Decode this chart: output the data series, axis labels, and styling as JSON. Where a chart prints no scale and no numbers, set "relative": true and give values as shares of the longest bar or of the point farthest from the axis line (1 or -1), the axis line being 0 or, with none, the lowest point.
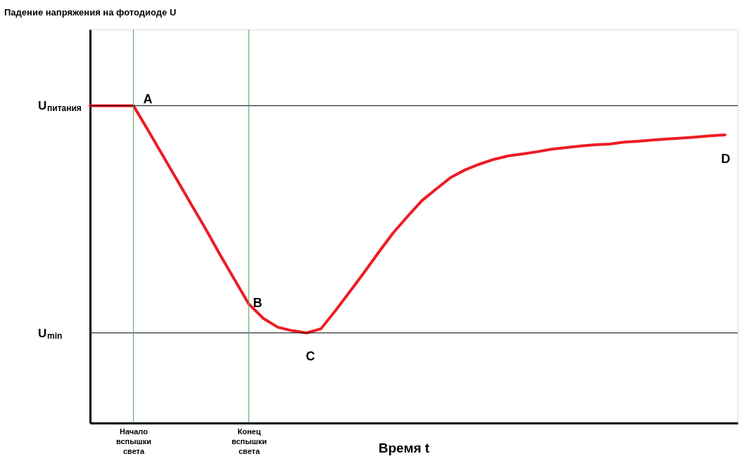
{
  "chart_data": {
    "type": "line",
    "relative": true,
    "xlabel": "Время t",
    "legend": false,
    "marker": "none",
    "line_style": "solid",
    "categories": [
      null,
      null,
      null,
      "Начало вспышки света",
      null,
      null,
      null,
      null,
      null,
      null,
      null,
      "Конец вспышки света",
      null,
      null,
      null,
      null,
      null,
      null,
      null,
      null,
      null,
      null,
      null,
      null,
      null,
      null,
      null,
      null,
      null,
      null,
      null,
      null,
      null,
      null,
      null,
      null,
      null,
      null,
      null,
      null,
      null,
      null,
      null,
      null,
      null
    ],
    "series": [
      {
        "color": "#ed1c24",
        "values": [
          1,
          1,
          1,
          1,
          0.924,
          0.846,
          0.768,
          0.69,
          0.612,
          0.531,
          0.453,
          0.375,
          0.33,
          0.302,
          0.291,
          0.284,
          0.297,
          0.354,
          0.414,
          0.475,
          0.538,
          0.599,
          0.651,
          0.701,
          0.738,
          0.774,
          0.798,
          0.816,
          0.831,
          0.842,
          0.848,
          0.855,
          0.863,
          0.868,
          0.873,
          0.877,
          0.879,
          0.885,
          0.888,
          0.892,
          0.895,
          0.898,
          0.901,
          0.905,
          0.908
        ]
      }
    ],
    "ref_lines": [
      {
        "axis": "y",
        "value": 1,
        "label": "U$_{питания}$",
        "color": "#000000"
      },
      {
        "axis": "y",
        "value": 0.284,
        "label": "U$_{min}$",
        "color": "#000000"
      },
      {
        "axis": "x",
        "value": "Начало вспышки света",
        "color": "#5aa55a"
      },
      {
        "axis": "x",
        "value": "Конец вспышки света",
        "color": "#5aa55a"
      }
    ],
    "annotations": [
      "Падение напряжения на фотодиоде U",
      "A",
      "B",
      "C",
      "D"
    ]
  }
}
